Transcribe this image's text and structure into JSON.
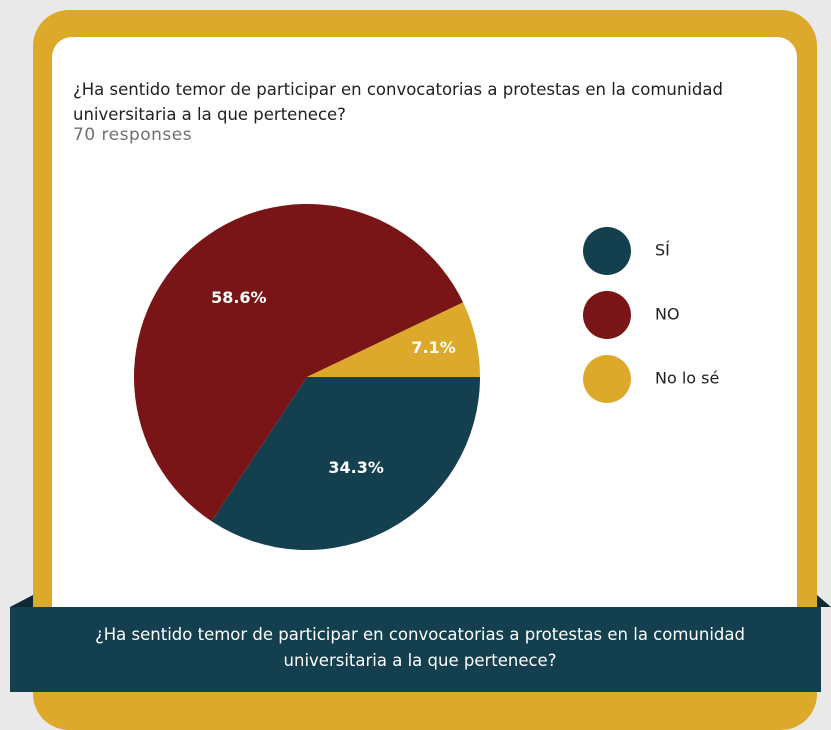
{
  "chart_data": {
    "type": "pie",
    "title": "¿Ha sentido temor de participar en convocatorias a protestas en la comunidad universitaria a la que pertenece?",
    "subtitle": "70 responses",
    "categories": [
      "SÍ",
      "NO",
      "No lo sé"
    ],
    "values": [
      34.3,
      58.6,
      7.1
    ],
    "value_labels": [
      "34.3%",
      "58.6%",
      "7.1%"
    ],
    "colors": [
      "#133f4f",
      "#7a1517",
      "#dca92a"
    ],
    "legend": "right",
    "caption": "¿Ha sentido temor de participar en convocatorias a protestas en la comunidad universitaria a la que pertenece?"
  }
}
